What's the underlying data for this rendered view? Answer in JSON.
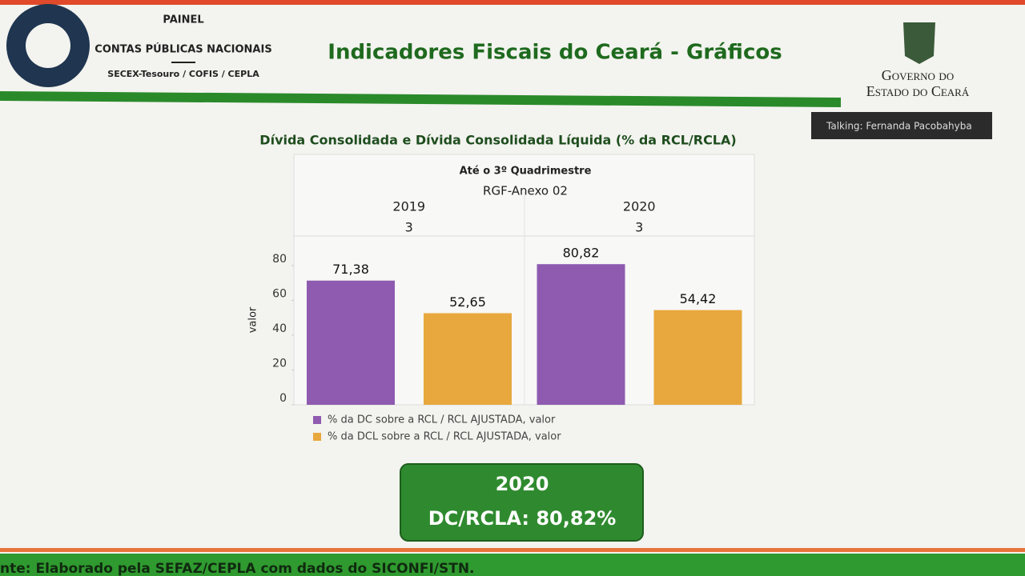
{
  "header": {
    "panel_lines": [
      "PAINEL",
      "CONTAS PÚBLICAS NACIONAIS",
      "SECEX-Tesouro / COFIS / CEPLA"
    ],
    "title": "Indicadores Fiscais do Ceará - Gráficos",
    "government_lines": [
      "Governo do",
      "Estado do Ceará"
    ]
  },
  "talking": "Talking: Fernanda Pacobahyba",
  "chart_data": {
    "type": "bar",
    "title": "Dívida Consolidada e Dívida Consolidada Líquida (% da RCL/RCLA)",
    "subtitle": "Até o 3º Quadrimestre",
    "subtitle2": "RGF-Anexo 02",
    "categories": [
      "2019",
      "2020"
    ],
    "periods": [
      "3",
      "3"
    ],
    "y_label": "valor",
    "series": [
      {
        "name": "% da DC sobre a RCL / RCL AJUSTADA, valor",
        "color": "#8e5bb0",
        "values": [
          71.38,
          80.82
        ],
        "value_labels": [
          "71,38",
          "80,82"
        ]
      },
      {
        "name": "% da DCL sobre a RCL / RCL AJUSTADA, valor",
        "color": "#e8a83e",
        "values": [
          52.65,
          54.42
        ],
        "value_labels": [
          "52,65",
          "54,42"
        ]
      }
    ],
    "ylim": [
      0,
      97
    ],
    "yticks": [
      0,
      20,
      40,
      60,
      80
    ]
  },
  "highlight": {
    "lines": [
      "2020",
      "DC/RCLA: 80,82%"
    ]
  },
  "footer": "nte: Elaborado pela SEFAZ/CEPLA com dados do SICONFI/STN."
}
